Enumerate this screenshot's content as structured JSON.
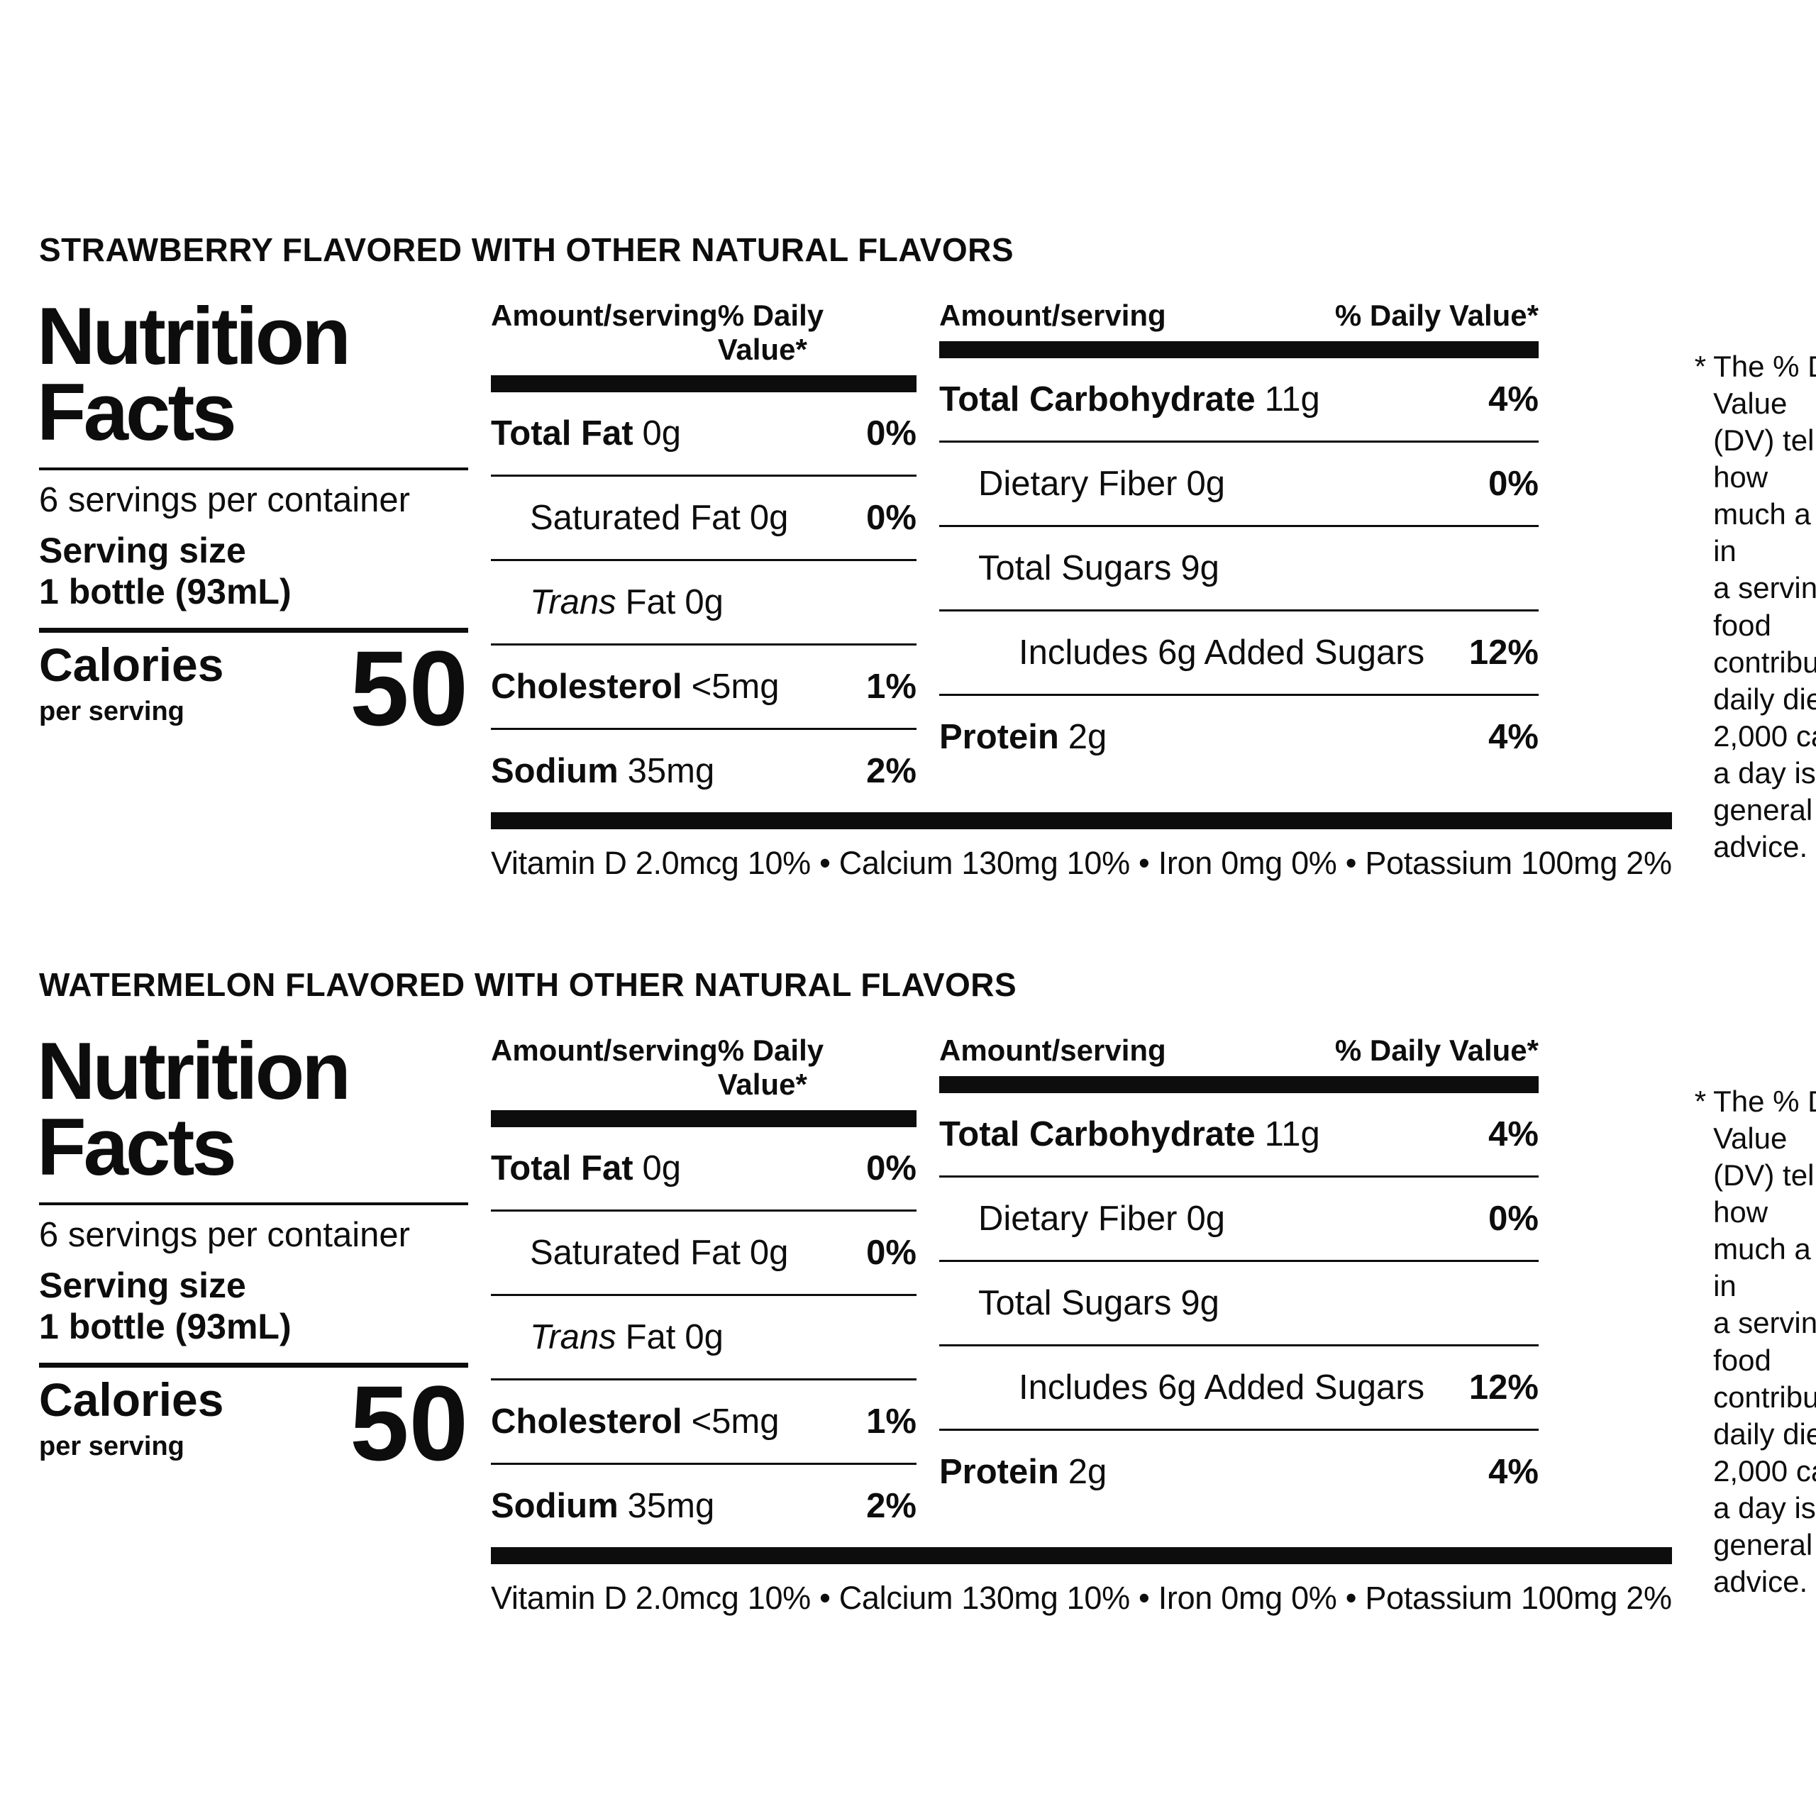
{
  "colors": {
    "text": "#0d0d0d",
    "background": "#ffffff"
  },
  "panels": [
    {
      "flavor_header": "STRAWBERRY FLAVORED WITH OTHER NATURAL FLAVORS",
      "title": "Nutrition\nFacts",
      "servings_per_container": "6 servings per container",
      "serving_size_label": "Serving size",
      "serving_size_value": "1 bottle (93mL)",
      "calories_label": "Calories",
      "calories_sublabel": "per serving",
      "calories_value": "50",
      "amount_header": "Amount/serving",
      "dv_header": "% Daily Value*",
      "fat_col": [
        {
          "name": "Total Fat",
          "amount": "0g",
          "dv": "0%"
        },
        {
          "name": "Saturated Fat",
          "amount": "0g",
          "dv": "0%"
        },
        {
          "name_italic": "Trans",
          "name": "Fat",
          "amount": "0g",
          "dv": ""
        },
        {
          "name": "Cholesterol",
          "amount": "<5mg",
          "dv": "1%"
        },
        {
          "name": "Sodium",
          "amount": "35mg",
          "dv": "2%"
        }
      ],
      "carb_col": [
        {
          "name": "Total Carbohydrate",
          "amount": "11g",
          "dv": "4%"
        },
        {
          "name": "Dietary Fiber",
          "amount": "0g",
          "dv": "0%"
        },
        {
          "name": "Total Sugars",
          "amount": "9g",
          "dv": ""
        },
        {
          "name": "Includes 6g Added Sugars",
          "amount": "",
          "dv": "12%"
        },
        {
          "name": "Protein",
          "amount": "2g",
          "dv": "4%"
        }
      ],
      "vitamins": "Vitamin D 2.0mcg 10% • Calcium 130mg 10% • Iron 0mg 0% • Potassium 100mg 2%",
      "footnote_marker": "*",
      "footnote": "The % Daily Value\n(DV) tells you how\nmuch a nutrient in\na serving of food\ncontributes to a\ndaily diet.\n2,000 calories\na day is used for\ngeneral nutrition\nadvice."
    },
    {
      "flavor_header": "WATERMELON FLAVORED WITH OTHER NATURAL FLAVORS",
      "title": "Nutrition\nFacts",
      "servings_per_container": "6 servings per container",
      "serving_size_label": "Serving size",
      "serving_size_value": "1 bottle (93mL)",
      "calories_label": "Calories",
      "calories_sublabel": "per serving",
      "calories_value": "50",
      "amount_header": "Amount/serving",
      "dv_header": "% Daily Value*",
      "fat_col": [
        {
          "name": "Total Fat",
          "amount": "0g",
          "dv": "0%"
        },
        {
          "name": "Saturated Fat",
          "amount": "0g",
          "dv": "0%"
        },
        {
          "name_italic": "Trans",
          "name": "Fat",
          "amount": "0g",
          "dv": ""
        },
        {
          "name": "Cholesterol",
          "amount": "<5mg",
          "dv": "1%"
        },
        {
          "name": "Sodium",
          "amount": "35mg",
          "dv": "2%"
        }
      ],
      "carb_col": [
        {
          "name": "Total Carbohydrate",
          "amount": "11g",
          "dv": "4%"
        },
        {
          "name": "Dietary Fiber",
          "amount": "0g",
          "dv": "0%"
        },
        {
          "name": "Total Sugars",
          "amount": "9g",
          "dv": ""
        },
        {
          "name": "Includes 6g Added Sugars",
          "amount": "",
          "dv": "12%"
        },
        {
          "name": "Protein",
          "amount": "2g",
          "dv": "4%"
        }
      ],
      "vitamins": "Vitamin D 2.0mcg 10% • Calcium 130mg 10% • Iron 0mg 0% • Potassium 100mg 2%",
      "footnote_marker": "*",
      "footnote": "The % Daily Value\n(DV) tells you how\nmuch a nutrient in\na serving of food\ncontributes to a\ndaily diet.\n2,000 calories\na day is used for\ngeneral nutrition\nadvice."
    }
  ]
}
